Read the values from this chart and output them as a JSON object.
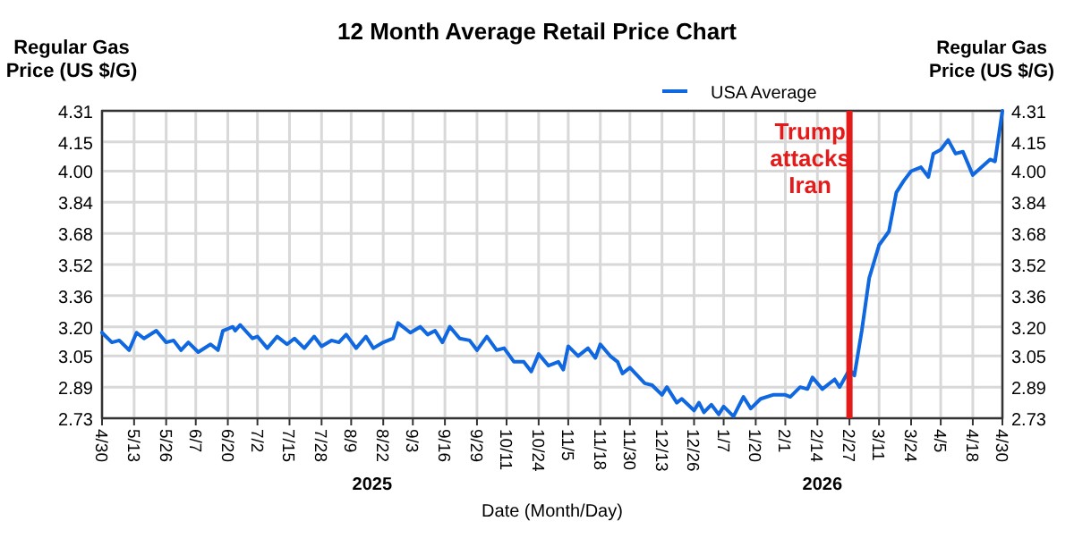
{
  "chart_data": {
    "type": "line",
    "title": "12 Month Average Retail Price Chart",
    "xlabel": "Date (Month/Day)",
    "ylabel": "Regular Gas Price (US $/G)",
    "y2label": "Regular Gas Price (US $/G)",
    "x": [
      "2025-04-30",
      "2025-05-04",
      "2025-05-07",
      "2025-05-11",
      "2025-05-14",
      "2025-05-17",
      "2025-05-22",
      "2025-05-26",
      "2025-05-29",
      "2025-06-01",
      "2025-06-04",
      "2025-06-08",
      "2025-06-13",
      "2025-06-16",
      "2025-06-18",
      "2025-06-22",
      "2025-06-23",
      "2025-06-25",
      "2025-06-30",
      "2025-07-02",
      "2025-07-06",
      "2025-07-10",
      "2025-07-14",
      "2025-07-17",
      "2025-07-21",
      "2025-07-25",
      "2025-07-28",
      "2025-08-01",
      "2025-08-04",
      "2025-08-07",
      "2025-08-11",
      "2025-08-15",
      "2025-08-18",
      "2025-08-22",
      "2025-08-26",
      "2025-08-28",
      "2025-09-02",
      "2025-09-06",
      "2025-09-09",
      "2025-09-12",
      "2025-09-15",
      "2025-09-18",
      "2025-09-22",
      "2025-09-26",
      "2025-09-29",
      "2025-10-03",
      "2025-10-07",
      "2025-10-10",
      "2025-10-14",
      "2025-10-18",
      "2025-10-21",
      "2025-10-24",
      "2025-10-28",
      "2025-11-01",
      "2025-11-03",
      "2025-11-05",
      "2025-11-09",
      "2025-11-13",
      "2025-11-16",
      "2025-11-18",
      "2025-11-22",
      "2025-11-25",
      "2025-11-27",
      "2025-11-30",
      "2025-12-03",
      "2025-12-06",
      "2025-12-09",
      "2025-12-13",
      "2025-12-15",
      "2025-12-19",
      "2025-12-21",
      "2025-12-26",
      "2025-12-28",
      "2025-12-30",
      "2026-01-02",
      "2026-01-05",
      "2026-01-07",
      "2026-01-11",
      "2026-01-15",
      "2026-01-18",
      "2026-01-22",
      "2026-01-27",
      "2026-02-01",
      "2026-02-03",
      "2026-02-07",
      "2026-02-10",
      "2026-02-12",
      "2026-02-16",
      "2026-02-21",
      "2026-02-23",
      "2026-02-27",
      "2026-03-01",
      "2026-03-04",
      "2026-03-07",
      "2026-03-11",
      "2026-03-15",
      "2026-03-18",
      "2026-03-21",
      "2026-03-24",
      "2026-03-28",
      "2026-03-31",
      "2026-04-02",
      "2026-04-05",
      "2026-04-08",
      "2026-04-11",
      "2026-04-14",
      "2026-04-18",
      "2026-04-25",
      "2026-04-27",
      "2026-04-30"
    ],
    "series": [
      {
        "name": "USA Average",
        "color": "#1068e0",
        "values": [
          3.17,
          3.12,
          3.13,
          3.08,
          3.17,
          3.14,
          3.18,
          3.12,
          3.13,
          3.08,
          3.12,
          3.07,
          3.11,
          3.08,
          3.18,
          3.2,
          3.18,
          3.21,
          3.14,
          3.15,
          3.09,
          3.15,
          3.11,
          3.14,
          3.09,
          3.15,
          3.1,
          3.13,
          3.12,
          3.16,
          3.09,
          3.15,
          3.09,
          3.12,
          3.14,
          3.22,
          3.17,
          3.2,
          3.16,
          3.18,
          3.12,
          3.2,
          3.14,
          3.13,
          3.08,
          3.15,
          3.08,
          3.09,
          3.02,
          3.02,
          2.97,
          3.06,
          3.0,
          3.02,
          2.98,
          3.1,
          3.05,
          3.09,
          3.04,
          3.11,
          3.05,
          3.02,
          2.96,
          2.99,
          2.95,
          2.91,
          2.9,
          2.85,
          2.89,
          2.81,
          2.83,
          2.77,
          2.81,
          2.76,
          2.8,
          2.75,
          2.79,
          2.74,
          2.84,
          2.78,
          2.83,
          2.85,
          2.85,
          2.84,
          2.89,
          2.88,
          2.94,
          2.88,
          2.93,
          2.89,
          2.98,
          2.95,
          3.18,
          3.45,
          3.62,
          3.69,
          3.89,
          3.95,
          4.0,
          4.02,
          3.97,
          4.09,
          4.11,
          4.16,
          4.09,
          4.1,
          3.98,
          4.06,
          4.05,
          4.31
        ]
      }
    ],
    "xlim": [
      "2025-04-30",
      "2026-04-30"
    ],
    "xticks": [
      {
        "value": "2025-04-30",
        "label": "4/30"
      },
      {
        "value": "2025-05-13",
        "label": "5/13"
      },
      {
        "value": "2025-05-26",
        "label": "5/26"
      },
      {
        "value": "2025-06-07",
        "label": "6/7"
      },
      {
        "value": "2025-06-20",
        "label": "6/20"
      },
      {
        "value": "2025-07-02",
        "label": "7/2"
      },
      {
        "value": "2025-07-15",
        "label": "7/15"
      },
      {
        "value": "2025-07-28",
        "label": "7/28"
      },
      {
        "value": "2025-08-09",
        "label": "8/9"
      },
      {
        "value": "2025-08-22",
        "label": "8/22"
      },
      {
        "value": "2025-09-03",
        "label": "9/3"
      },
      {
        "value": "2025-09-16",
        "label": "9/16"
      },
      {
        "value": "2025-09-29",
        "label": "9/29"
      },
      {
        "value": "2025-10-11",
        "label": "10/11"
      },
      {
        "value": "2025-10-24",
        "label": "10/24"
      },
      {
        "value": "2025-11-05",
        "label": "11/5"
      },
      {
        "value": "2025-11-18",
        "label": "11/18"
      },
      {
        "value": "2025-11-30",
        "label": "11/30"
      },
      {
        "value": "2025-12-13",
        "label": "12/13"
      },
      {
        "value": "2025-12-26",
        "label": "12/26"
      },
      {
        "value": "2026-01-07",
        "label": "1/7"
      },
      {
        "value": "2026-01-20",
        "label": "1/20"
      },
      {
        "value": "2026-02-01",
        "label": "2/1"
      },
      {
        "value": "2026-02-14",
        "label": "2/14"
      },
      {
        "value": "2026-02-27",
        "label": "2/27"
      },
      {
        "value": "2026-03-11",
        "label": "3/11"
      },
      {
        "value": "2026-03-24",
        "label": "3/24"
      },
      {
        "value": "2026-04-05",
        "label": "4/5"
      },
      {
        "value": "2026-04-18",
        "label": "4/18"
      },
      {
        "value": "2026-04-30",
        "label": "4/30"
      }
    ],
    "ylim": [
      2.73,
      4.31
    ],
    "yticks": [
      2.73,
      2.89,
      3.05,
      {
        "value": 3.2,
        "label": "3.20"
      },
      3.36,
      3.52,
      3.68,
      3.84,
      {
        "value": 4.0,
        "label": "4.00"
      },
      4.15,
      4.31
    ],
    "y2lim": [
      2.73,
      4.31
    ],
    "y2ticks": [
      2.73,
      2.89,
      3.05,
      {
        "value": 3.2,
        "label": "3.20"
      },
      3.36,
      3.52,
      3.68,
      3.84,
      {
        "value": 4.0,
        "label": "4.00"
      },
      4.15,
      4.31
    ],
    "ref_lines": [
      {
        "axis": "x",
        "value": "2026-02-27",
        "label": "Trump attacks Iran",
        "color": "#e41b1b"
      }
    ],
    "annotations": [
      "2025",
      "2026"
    ],
    "grid": true,
    "legend": "top",
    "marker": "none",
    "line_style": "solid"
  }
}
